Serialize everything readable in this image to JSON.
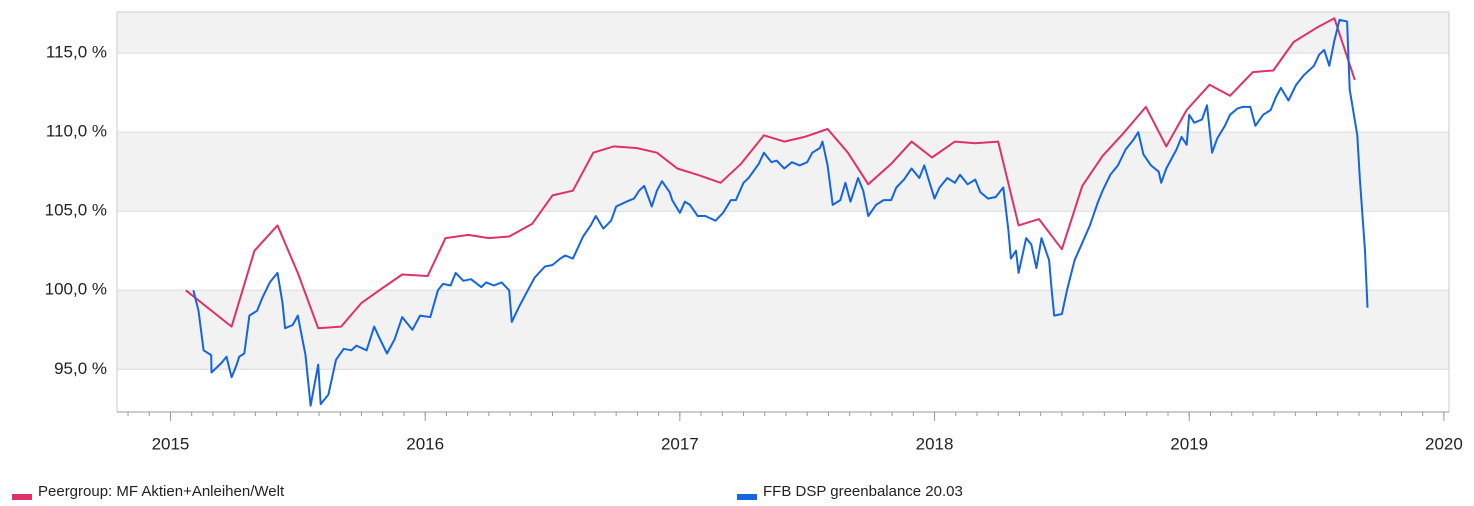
{
  "chart_data": {
    "type": "line",
    "xlim": [
      2014.79,
      2020.02
    ],
    "xticks": [
      2015,
      2016,
      2017,
      2018,
      2019,
      2020
    ],
    "ylim": [
      92.3,
      117.6
    ],
    "yticks": [
      {
        "value": 95,
        "label": "95,0 %"
      },
      {
        "value": 100,
        "label": "100,0 %"
      },
      {
        "value": 105,
        "label": "105,0 %"
      },
      {
        "value": 110,
        "label": "110,0 %"
      },
      {
        "value": 115,
        "label": "115,0 %"
      }
    ],
    "grid": true,
    "band_color": "#f2f2f2",
    "legend": "bottom",
    "series": [
      {
        "name": "Peergroup: MF Aktien+Anleihen/Welt",
        "color": "#e0306a",
        "x": [
          2015.06,
          2015.24,
          2015.33,
          2015.42,
          2015.5,
          2015.58,
          2015.67,
          2015.75,
          2015.82,
          2015.91,
          2016.01,
          2016.08,
          2016.17,
          2016.25,
          2016.33,
          2016.42,
          2016.5,
          2016.58,
          2016.66,
          2016.74,
          2016.83,
          2016.91,
          2016.99,
          2017.07,
          2017.16,
          2017.24,
          2017.33,
          2017.41,
          2017.49,
          2017.58,
          2017.66,
          2017.74,
          2017.83,
          2017.91,
          2017.99,
          2018.08,
          2018.16,
          2018.25,
          2018.33,
          2018.41,
          2018.5,
          2018.58,
          2018.66,
          2018.74,
          2018.83,
          2018.91,
          2018.99,
          2019.08,
          2019.16,
          2019.25,
          2019.33,
          2019.41,
          2019.5,
          2019.57,
          2019.65
        ],
        "values": [
          100.0,
          97.7,
          102.5,
          104.1,
          101.1,
          97.6,
          97.7,
          99.2,
          100.0,
          101.0,
          100.9,
          103.3,
          103.5,
          103.3,
          103.4,
          104.2,
          106.0,
          106.3,
          108.7,
          109.1,
          109.0,
          108.7,
          107.7,
          107.3,
          106.8,
          108.0,
          109.8,
          109.4,
          109.7,
          110.2,
          108.7,
          106.7,
          108.0,
          109.4,
          108.4,
          109.4,
          109.3,
          109.4,
          104.1,
          104.5,
          102.6,
          106.6,
          108.5,
          109.9,
          111.6,
          109.1,
          111.4,
          113.0,
          112.3,
          113.8,
          113.9,
          115.7,
          116.6,
          117.2,
          113.3
        ]
      },
      {
        "name": "FFB DSP greenbalance 20.03",
        "color": "#1565e0",
        "x": [
          2015.09,
          2015.11,
          2015.13,
          2015.16,
          2015.161,
          2015.2,
          2015.22,
          2015.24,
          2015.26,
          2015.27,
          2015.29,
          2015.31,
          2015.34,
          2015.36,
          2015.39,
          2015.42,
          2015.44,
          2015.45,
          2015.48,
          2015.5,
          2015.53,
          2015.55,
          2015.58,
          2015.59,
          2015.62,
          2015.65,
          2015.68,
          2015.71,
          2015.73,
          2015.77,
          2015.8,
          2015.82,
          2015.85,
          2015.88,
          2015.91,
          2015.95,
          2015.98,
          2016.02,
          2016.05,
          2016.07,
          2016.1,
          2016.12,
          2016.15,
          2016.18,
          2016.22,
          2016.24,
          2016.27,
          2016.3,
          2016.33,
          2016.34,
          2016.37,
          2016.4,
          2016.43,
          2016.47,
          2016.5,
          2016.53,
          2016.55,
          2016.58,
          2016.62,
          2016.65,
          2016.67,
          2016.7,
          2016.73,
          2016.75,
          2016.79,
          2016.82,
          2016.84,
          2016.86,
          2016.89,
          2016.91,
          2016.93,
          2016.96,
          2016.97,
          2017.0,
          2017.02,
          2017.04,
          2017.07,
          2017.1,
          2017.14,
          2017.17,
          2017.2,
          2017.22,
          2017.25,
          2017.27,
          2017.31,
          2017.33,
          2017.36,
          2017.38,
          2017.41,
          2017.44,
          2017.47,
          2017.5,
          2017.52,
          2017.55,
          2017.56,
          2017.58,
          2017.6,
          2017.63,
          2017.65,
          2017.67,
          2017.7,
          2017.72,
          2017.74,
          2017.77,
          2017.8,
          2017.83,
          2017.85,
          2017.88,
          2017.91,
          2017.94,
          2017.96,
          2018.0,
          2018.02,
          2018.05,
          2018.08,
          2018.1,
          2018.13,
          2018.16,
          2018.18,
          2018.21,
          2018.24,
          2018.27,
          2018.29,
          2018.3,
          2018.32,
          2018.33,
          2018.36,
          2018.38,
          2018.4,
          2018.42,
          2018.45,
          2018.46,
          2018.47,
          2018.5,
          2018.52,
          2018.55,
          2018.58,
          2018.61,
          2018.64,
          2018.66,
          2018.69,
          2018.72,
          2018.75,
          2018.78,
          2018.8,
          2018.82,
          2018.85,
          2018.88,
          2018.89,
          2018.91,
          2018.95,
          2018.97,
          2018.99,
          2019.0,
          2019.02,
          2019.05,
          2019.07,
          2019.09,
          2019.11,
          2019.14,
          2019.16,
          2019.19,
          2019.21,
          2019.24,
          2019.26,
          2019.29,
          2019.32,
          2019.34,
          2019.36,
          2019.39,
          2019.42,
          2019.45,
          2019.47,
          2019.49,
          2019.51,
          2019.53,
          2019.55,
          2019.57,
          2019.59,
          2019.62,
          2019.63,
          2019.66,
          2019.67,
          2019.69,
          2019.7
        ],
        "values": [
          100.0,
          98.7,
          96.2,
          95.9,
          94.8,
          95.4,
          95.8,
          94.5,
          95.3,
          95.8,
          96.0,
          98.4,
          98.7,
          99.5,
          100.5,
          101.1,
          99.2,
          97.6,
          97.8,
          98.4,
          95.9,
          92.7,
          95.3,
          92.8,
          93.4,
          95.6,
          96.3,
          96.2,
          96.5,
          96.2,
          97.7,
          97.0,
          96.0,
          96.9,
          98.3,
          97.5,
          98.4,
          98.3,
          100.0,
          100.4,
          100.3,
          101.1,
          100.6,
          100.7,
          100.2,
          100.5,
          100.3,
          100.5,
          100.0,
          98.0,
          99.0,
          99.9,
          100.8,
          101.5,
          101.6,
          102.0,
          102.2,
          102.0,
          103.4,
          104.1,
          104.7,
          103.9,
          104.4,
          105.3,
          105.6,
          105.8,
          106.3,
          106.6,
          105.3,
          106.3,
          106.9,
          106.2,
          105.7,
          104.9,
          105.6,
          105.4,
          104.7,
          104.7,
          104.4,
          104.9,
          105.7,
          105.7,
          106.8,
          107.1,
          108.0,
          108.7,
          108.1,
          108.2,
          107.7,
          108.1,
          107.9,
          108.1,
          108.7,
          109.0,
          109.4,
          107.9,
          105.4,
          105.7,
          106.8,
          105.6,
          107.1,
          106.3,
          104.7,
          105.4,
          105.7,
          105.7,
          106.5,
          107.0,
          107.7,
          107.1,
          107.9,
          105.8,
          106.5,
          107.1,
          106.8,
          107.3,
          106.7,
          107.0,
          106.2,
          105.8,
          105.9,
          106.5,
          103.8,
          102.0,
          102.5,
          101.1,
          103.3,
          102.9,
          101.4,
          103.3,
          101.9,
          100.0,
          98.4,
          98.5,
          100.0,
          101.9,
          103.0,
          104.1,
          105.5,
          106.3,
          107.3,
          107.9,
          108.9,
          109.5,
          110.0,
          108.6,
          107.9,
          107.5,
          106.8,
          107.7,
          108.9,
          109.7,
          109.2,
          111.1,
          110.6,
          110.8,
          111.7,
          108.7,
          109.6,
          110.4,
          111.1,
          111.5,
          111.6,
          111.6,
          110.4,
          111.1,
          111.4,
          112.2,
          112.8,
          112.0,
          113.0,
          113.6,
          113.9,
          114.2,
          114.9,
          115.2,
          114.2,
          115.8,
          117.1,
          117.0,
          112.7,
          109.8,
          107.0,
          102.5,
          98.9
        ]
      }
    ]
  }
}
